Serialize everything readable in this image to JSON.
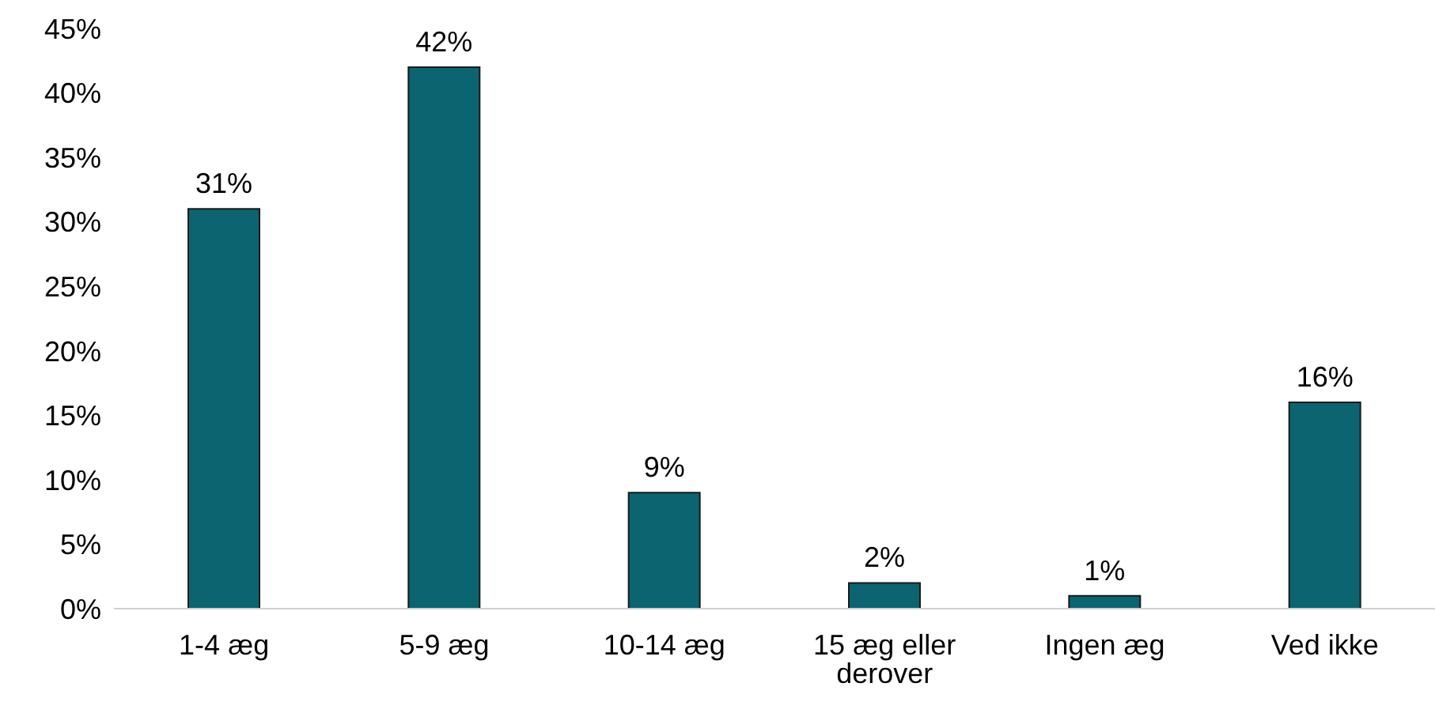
{
  "chart_data": {
    "type": "bar",
    "categories": [
      "1-4 æg",
      "5-9 æg",
      "10-14 æg",
      "15 æg eller derover",
      "Ingen æg",
      "Ved ikke"
    ],
    "values": [
      31,
      42,
      9,
      2,
      1,
      16
    ],
    "value_labels": [
      "31%",
      "42%",
      "9%",
      "2%",
      "1%",
      "16%"
    ],
    "color": "#0b6470",
    "ylim": [
      0,
      45
    ],
    "yticks": [
      {
        "value": 0,
        "label": "0%"
      },
      {
        "value": 5,
        "label": "5%"
      },
      {
        "value": 10,
        "label": "10%"
      },
      {
        "value": 15,
        "label": "15%"
      },
      {
        "value": 20,
        "label": "20%"
      },
      {
        "value": 25,
        "label": "25%"
      },
      {
        "value": 30,
        "label": "30%"
      },
      {
        "value": 35,
        "label": "35%"
      },
      {
        "value": 40,
        "label": "40%"
      },
      {
        "value": 45,
        "label": "45%"
      }
    ],
    "grid": false,
    "legend": false
  }
}
